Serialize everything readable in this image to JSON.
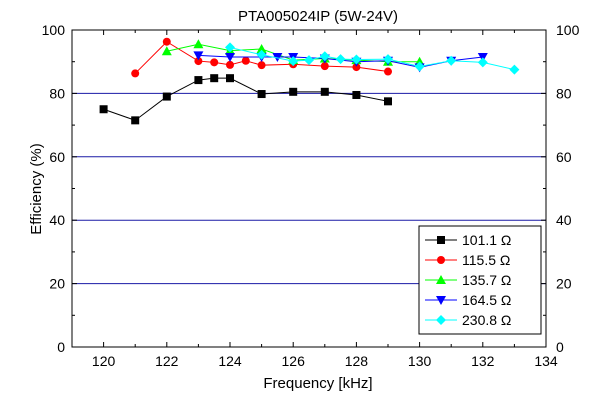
{
  "chart_data": {
    "type": "line",
    "title": "PTA005024IP (5W-24V)",
    "xlabel": "Frequency [kHz]",
    "ylabel": "Efficiency (%)",
    "xlim": [
      119,
      134
    ],
    "ylim": [
      0,
      100
    ],
    "x_ticks": [
      120,
      122,
      124,
      126,
      128,
      130,
      132,
      134
    ],
    "y_ticks": [
      0,
      20,
      40,
      60,
      80,
      100
    ],
    "grid": "horizontal",
    "legend_position": "bottom-right",
    "series": [
      {
        "name": "101.1 Ω",
        "color": "#000000",
        "marker": "square",
        "x": [
          120,
          121,
          122,
          123,
          123.5,
          124,
          125,
          126,
          127,
          128,
          129
        ],
        "y": [
          75,
          71.5,
          79,
          84.2,
          84.8,
          84.8,
          79.8,
          80.5,
          80.5,
          79.5,
          77.5
        ]
      },
      {
        "name": "115.5 Ω",
        "color": "#ff0000",
        "marker": "circle",
        "x": [
          121,
          122,
          123,
          123.5,
          124,
          124.5,
          125,
          126,
          127,
          128,
          129
        ],
        "y": [
          86.3,
          96.3,
          90.2,
          89.8,
          89,
          90.3,
          88.9,
          89.2,
          88.6,
          88.3,
          86.9
        ]
      },
      {
        "name": "135.7 Ω",
        "color": "#00ff00",
        "marker": "triangle-up",
        "x": [
          122,
          123,
          124,
          125,
          126,
          127,
          128,
          129,
          130
        ],
        "y": [
          93.3,
          95.5,
          93.5,
          94,
          90.5,
          91,
          90.5,
          90,
          90
        ]
      },
      {
        "name": "164.5 Ω",
        "color": "#0000ff",
        "marker": "triangle-down",
        "x": [
          123,
          124,
          125,
          125.5,
          126,
          127,
          128,
          129,
          130,
          131,
          132
        ],
        "y": [
          92,
          91.5,
          91.5,
          91.5,
          91.5,
          91,
          90,
          90.3,
          88.2,
          90.3,
          91.5
        ]
      },
      {
        "name": "230.8 Ω",
        "color": "#00ffff",
        "marker": "diamond",
        "x": [
          124,
          125,
          126,
          126.5,
          127,
          127.5,
          128,
          129,
          130,
          131,
          132,
          133
        ],
        "y": [
          94.5,
          92.2,
          90.2,
          90.5,
          91.7,
          90.8,
          90.7,
          90.8,
          88.5,
          90.3,
          89.8,
          87.5
        ]
      }
    ]
  }
}
